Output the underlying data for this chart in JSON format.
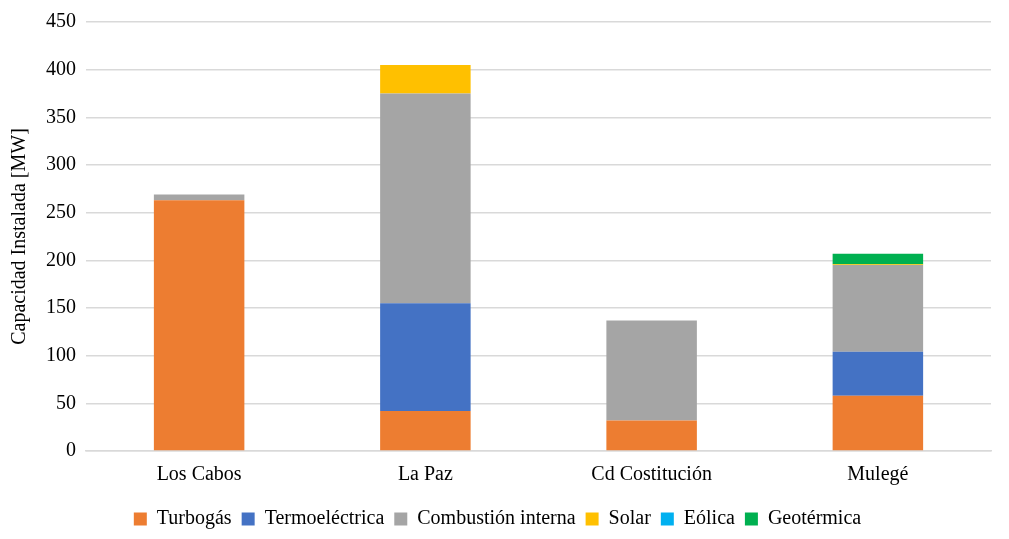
{
  "chart_data": {
    "type": "bar",
    "stacked": true,
    "ylabel": "Capacidad Instalada [MW]",
    "categories": [
      "Los Cabos",
      "La Paz",
      "Cd Costitución",
      "Mulegé"
    ],
    "ylim": [
      0,
      450
    ],
    "yticks": [
      0,
      50,
      100,
      150,
      200,
      250,
      300,
      350,
      400,
      450
    ],
    "grid": "y",
    "legend": "bottom",
    "series": [
      {
        "name": "Turbogás",
        "color": "#ed7d31",
        "values": [
          263,
          42,
          32,
          58
        ]
      },
      {
        "name": "Termoeléctrica",
        "color": "#4472c4",
        "values": [
          0,
          113,
          0,
          46
        ]
      },
      {
        "name": "Combustión interna",
        "color": "#a5a5a5",
        "values": [
          6,
          220,
          105,
          91
        ]
      },
      {
        "name": "Solar",
        "color": "#ffc000",
        "values": [
          0,
          30,
          0,
          1
        ]
      },
      {
        "name": "Eólica",
        "color": "#00b0f0",
        "values": [
          0,
          0,
          0,
          0
        ]
      },
      {
        "name": "Geotérmica",
        "color": "#00b050",
        "values": [
          0,
          0,
          0,
          11
        ]
      }
    ]
  }
}
